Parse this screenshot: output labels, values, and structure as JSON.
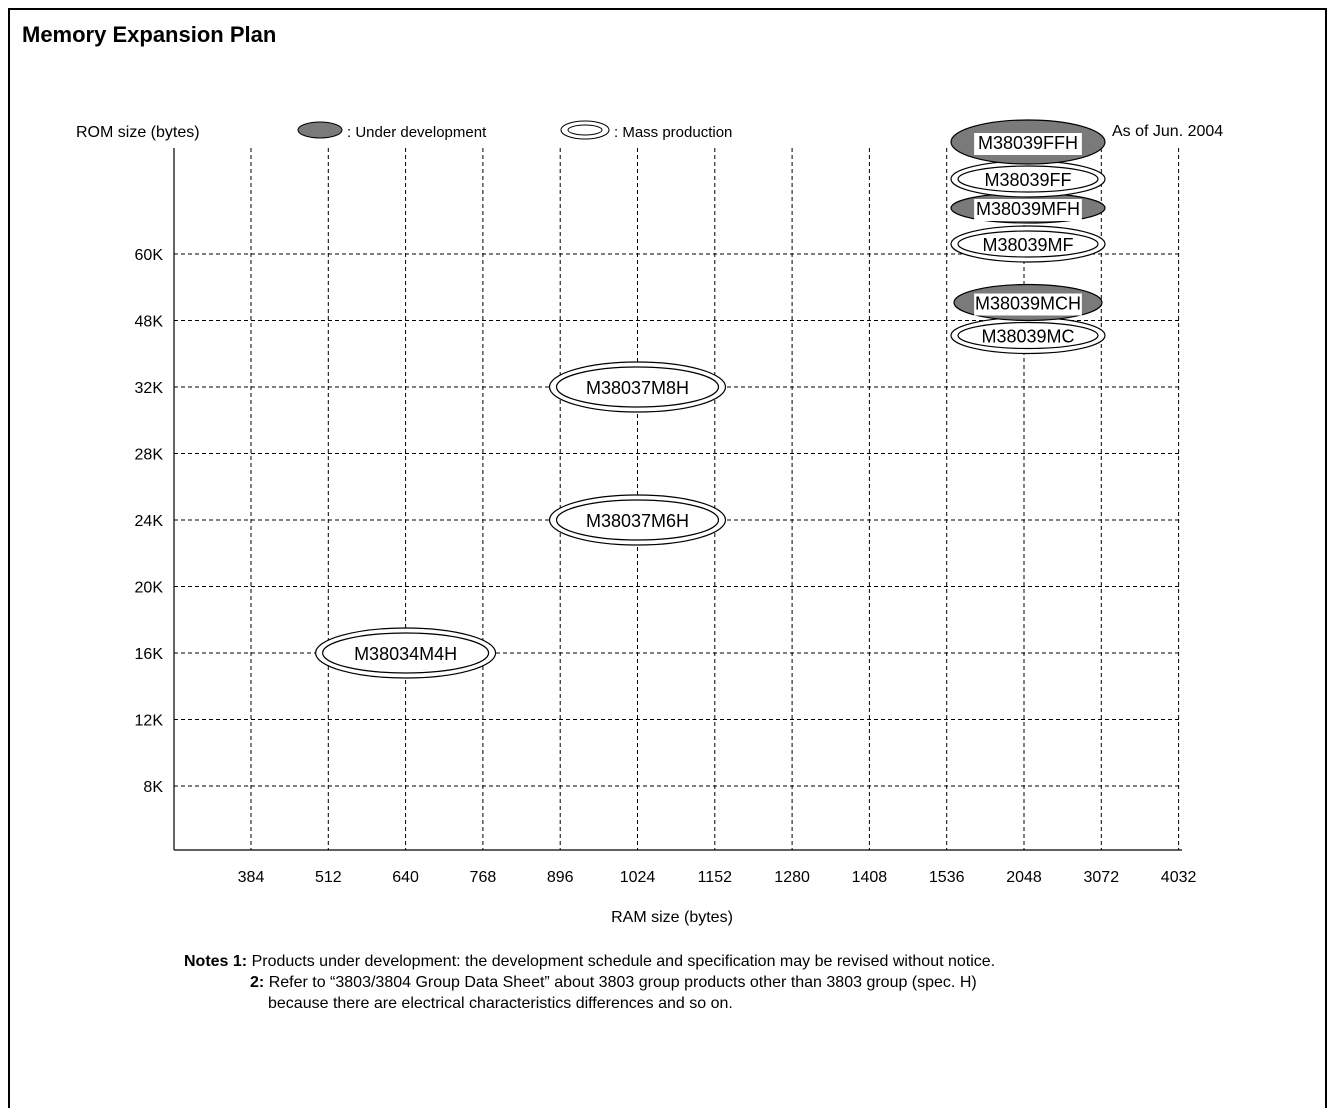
{
  "page": {
    "title": "Memory Expansion Plan",
    "as_of": "As of Jun. 2004"
  },
  "legend": {
    "under_development": ": Under development",
    "mass_production": ": Mass production"
  },
  "notes": {
    "n1_label": "Notes 1:",
    "n1_text": "Products under development: the development schedule and specification may be revised without notice.",
    "n2_label": "2:",
    "n2_text_line1": "Refer to “3803/3804 Group Data Sheet” about 3803 group products other than 3803 group (spec. H)",
    "n2_text_line2": "because there are electrical characteristics differences and so on."
  },
  "colors": {
    "under_development_fill": "#7a7a7a",
    "mass_production_fill": "#ffffff",
    "grid": "#000000"
  },
  "chart_data": {
    "type": "scatter",
    "title": "Memory Expansion Plan",
    "xlabel": "RAM size (bytes)",
    "ylabel": "ROM size (bytes)",
    "x_categories": [
      "384",
      "512",
      "640",
      "768",
      "896",
      "1024",
      "1152",
      "1280",
      "1408",
      "1536",
      "2048",
      "3072",
      "4032"
    ],
    "y_categories": [
      "8K",
      "12K",
      "16K",
      "20K",
      "24K",
      "28K",
      "32K",
      "48K",
      "60K"
    ],
    "grid": true,
    "legend_position": "top",
    "points": [
      {
        "name": "M38034M4H",
        "ram": "640",
        "rom": "16K",
        "status": "mass_production"
      },
      {
        "name": "M38037M6H",
        "ram": "1024",
        "rom": "24K",
        "status": "mass_production"
      },
      {
        "name": "M38037M8H",
        "ram": "1024",
        "rom": "32K",
        "status": "mass_production"
      },
      {
        "name": "M38039MC",
        "ram": "2048",
        "rom": "48K",
        "status": "mass_production"
      },
      {
        "name": "M38039MCH",
        "ram": "2048",
        "rom": "48K",
        "status": "under_development"
      },
      {
        "name": "M38039MF",
        "ram": "2048",
        "rom": "60K",
        "status": "mass_production"
      },
      {
        "name": "M38039MFH",
        "ram": "2048",
        "rom": "60K",
        "status": "under_development"
      },
      {
        "name": "M38039FF",
        "ram": "2048",
        "rom": "60K",
        "status": "mass_production"
      },
      {
        "name": "M38039FFH",
        "ram": "2048",
        "rom": "60K",
        "status": "under_development"
      }
    ]
  }
}
